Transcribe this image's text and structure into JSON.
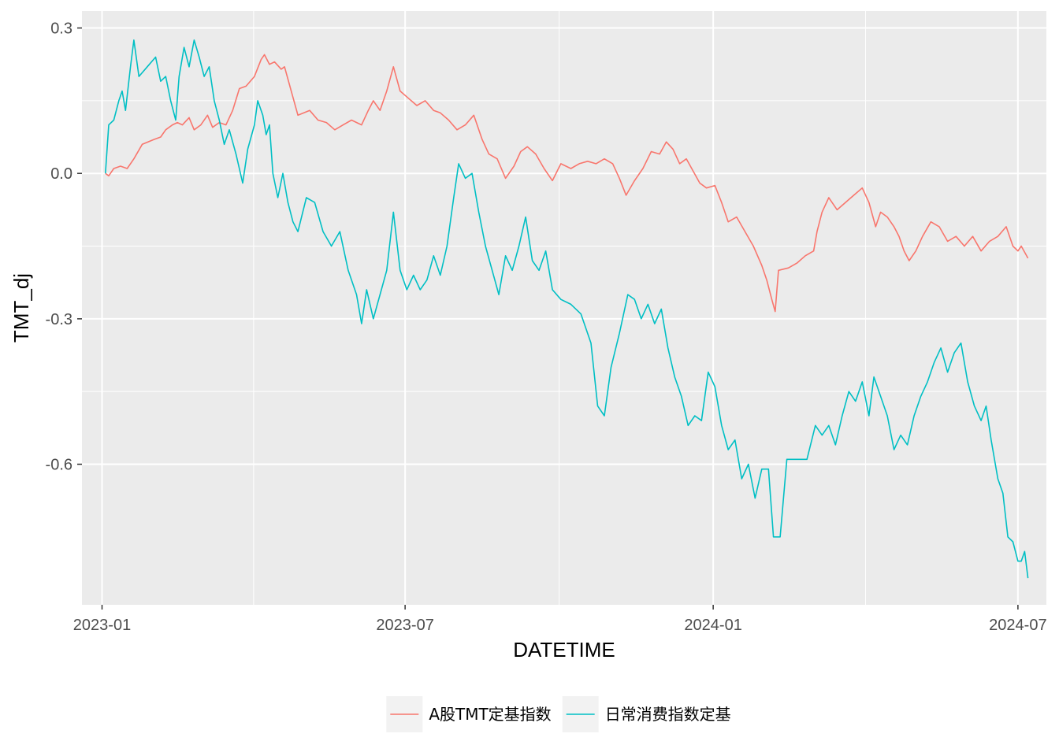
{
  "chart_data": {
    "type": "line",
    "xlabel": "DATETIME",
    "ylabel": "TMT_dj",
    "x_ticks": [
      "2023-01",
      "2023-07",
      "2024-01",
      "2024-07"
    ],
    "y_ticks": [
      "-0.6",
      "-0.3",
      "0.0",
      "0.3"
    ],
    "ylim": [
      -0.89,
      0.335
    ],
    "xlim": [
      "2022-12-20",
      "2024-07-18"
    ],
    "grid": true,
    "background": "#ebebeb",
    "legend_position": "bottom",
    "series": [
      {
        "name": "A股TMT定基指数",
        "color": "#f8766d",
        "points": [
          [
            "2023-01-03",
            0.0
          ],
          [
            "2023-01-05",
            -0.005
          ],
          [
            "2023-01-08",
            0.01
          ],
          [
            "2023-01-12",
            0.015
          ],
          [
            "2023-01-16",
            0.01
          ],
          [
            "2023-01-20",
            0.03
          ],
          [
            "2023-01-25",
            0.06
          ],
          [
            "2023-02-01",
            0.07
          ],
          [
            "2023-02-05",
            0.075
          ],
          [
            "2023-02-08",
            0.09
          ],
          [
            "2023-02-12",
            0.1
          ],
          [
            "2023-02-15",
            0.105
          ],
          [
            "2023-02-18",
            0.1
          ],
          [
            "2023-02-22",
            0.115
          ],
          [
            "2023-02-25",
            0.09
          ],
          [
            "2023-03-01",
            0.1
          ],
          [
            "2023-03-05",
            0.12
          ],
          [
            "2023-03-08",
            0.095
          ],
          [
            "2023-03-12",
            0.105
          ],
          [
            "2023-03-16",
            0.1
          ],
          [
            "2023-03-20",
            0.13
          ],
          [
            "2023-03-24",
            0.175
          ],
          [
            "2023-03-28",
            0.18
          ],
          [
            "2023-04-02",
            0.2
          ],
          [
            "2023-04-06",
            0.235
          ],
          [
            "2023-04-08",
            0.245
          ],
          [
            "2023-04-11",
            0.225
          ],
          [
            "2023-04-14",
            0.23
          ],
          [
            "2023-04-18",
            0.215
          ],
          [
            "2023-04-20",
            0.22
          ],
          [
            "2023-04-24",
            0.17
          ],
          [
            "2023-04-28",
            0.12
          ],
          [
            "2023-05-05",
            0.13
          ],
          [
            "2023-05-10",
            0.11
          ],
          [
            "2023-05-15",
            0.105
          ],
          [
            "2023-05-20",
            0.09
          ],
          [
            "2023-05-25",
            0.1
          ],
          [
            "2023-05-30",
            0.11
          ],
          [
            "2023-06-05",
            0.1
          ],
          [
            "2023-06-09",
            0.13
          ],
          [
            "2023-06-12",
            0.15
          ],
          [
            "2023-06-16",
            0.13
          ],
          [
            "2023-06-20",
            0.17
          ],
          [
            "2023-06-24",
            0.22
          ],
          [
            "2023-06-28",
            0.17
          ],
          [
            "2023-07-03",
            0.155
          ],
          [
            "2023-07-08",
            0.14
          ],
          [
            "2023-07-13",
            0.15
          ],
          [
            "2023-07-18",
            0.13
          ],
          [
            "2023-07-22",
            0.125
          ],
          [
            "2023-07-27",
            0.11
          ],
          [
            "2023-08-01",
            0.09
          ],
          [
            "2023-08-06",
            0.1
          ],
          [
            "2023-08-11",
            0.12
          ],
          [
            "2023-08-16",
            0.07
          ],
          [
            "2023-08-20",
            0.04
          ],
          [
            "2023-08-25",
            0.03
          ],
          [
            "2023-08-30",
            -0.01
          ],
          [
            "2023-09-04",
            0.015
          ],
          [
            "2023-09-08",
            0.045
          ],
          [
            "2023-09-12",
            0.055
          ],
          [
            "2023-09-17",
            0.04
          ],
          [
            "2023-09-22",
            0.01
          ],
          [
            "2023-09-27",
            -0.015
          ],
          [
            "2023-10-02",
            0.02
          ],
          [
            "2023-10-08",
            0.01
          ],
          [
            "2023-10-13",
            0.02
          ],
          [
            "2023-10-18",
            0.025
          ],
          [
            "2023-10-23",
            0.02
          ],
          [
            "2023-10-28",
            0.03
          ],
          [
            "2023-11-02",
            0.02
          ],
          [
            "2023-11-06",
            -0.01
          ],
          [
            "2023-11-10",
            -0.045
          ],
          [
            "2023-11-15",
            -0.015
          ],
          [
            "2023-11-20",
            0.01
          ],
          [
            "2023-11-25",
            0.045
          ],
          [
            "2023-11-30",
            0.04
          ],
          [
            "2023-12-04",
            0.065
          ],
          [
            "2023-12-08",
            0.05
          ],
          [
            "2023-12-12",
            0.02
          ],
          [
            "2023-12-16",
            0.03
          ],
          [
            "2023-12-20",
            0.005
          ],
          [
            "2023-12-24",
            -0.02
          ],
          [
            "2023-12-28",
            -0.03
          ],
          [
            "2024-01-02",
            -0.025
          ],
          [
            "2024-01-06",
            -0.06
          ],
          [
            "2024-01-10",
            -0.1
          ],
          [
            "2024-01-15",
            -0.09
          ],
          [
            "2024-01-20",
            -0.12
          ],
          [
            "2024-01-25",
            -0.15
          ],
          [
            "2024-01-30",
            -0.19
          ],
          [
            "2024-02-02",
            -0.22
          ],
          [
            "2024-02-05",
            -0.26
          ],
          [
            "2024-02-07",
            -0.285
          ],
          [
            "2024-02-09",
            -0.2
          ],
          [
            "2024-02-15",
            -0.195
          ],
          [
            "2024-02-20",
            -0.185
          ],
          [
            "2024-02-25",
            -0.17
          ],
          [
            "2024-03-01",
            -0.16
          ],
          [
            "2024-03-03",
            -0.12
          ],
          [
            "2024-03-06",
            -0.08
          ],
          [
            "2024-03-10",
            -0.05
          ],
          [
            "2024-03-15",
            -0.075
          ],
          [
            "2024-03-20",
            -0.06
          ],
          [
            "2024-03-25",
            -0.045
          ],
          [
            "2024-03-30",
            -0.03
          ],
          [
            "2024-04-03",
            -0.06
          ],
          [
            "2024-04-07",
            -0.11
          ],
          [
            "2024-04-10",
            -0.08
          ],
          [
            "2024-04-14",
            -0.09
          ],
          [
            "2024-04-18",
            -0.11
          ],
          [
            "2024-04-21",
            -0.13
          ],
          [
            "2024-04-24",
            -0.16
          ],
          [
            "2024-04-27",
            -0.18
          ],
          [
            "2024-05-01",
            -0.16
          ],
          [
            "2024-05-05",
            -0.13
          ],
          [
            "2024-05-10",
            -0.1
          ],
          [
            "2024-05-15",
            -0.11
          ],
          [
            "2024-05-20",
            -0.14
          ],
          [
            "2024-05-25",
            -0.13
          ],
          [
            "2024-05-30",
            -0.15
          ],
          [
            "2024-06-04",
            -0.13
          ],
          [
            "2024-06-09",
            -0.16
          ],
          [
            "2024-06-14",
            -0.14
          ],
          [
            "2024-06-19",
            -0.13
          ],
          [
            "2024-06-24",
            -0.11
          ],
          [
            "2024-06-28",
            -0.15
          ],
          [
            "2024-07-01",
            -0.16
          ],
          [
            "2024-07-03",
            -0.15
          ],
          [
            "2024-07-07",
            -0.175
          ]
        ]
      },
      {
        "name": "日常消费指数定基",
        "color": "#00bfc4",
        "points": [
          [
            "2023-01-03",
            0.0
          ],
          [
            "2023-01-05",
            0.1
          ],
          [
            "2023-01-08",
            0.11
          ],
          [
            "2023-01-11",
            0.15
          ],
          [
            "2023-01-13",
            0.17
          ],
          [
            "2023-01-15",
            0.13
          ],
          [
            "2023-01-18",
            0.22
          ],
          [
            "2023-01-20",
            0.275
          ],
          [
            "2023-01-23",
            0.2
          ],
          [
            "2023-01-28",
            0.22
          ],
          [
            "2023-02-02",
            0.24
          ],
          [
            "2023-02-05",
            0.19
          ],
          [
            "2023-02-08",
            0.2
          ],
          [
            "2023-02-11",
            0.15
          ],
          [
            "2023-02-14",
            0.11
          ],
          [
            "2023-02-16",
            0.2
          ],
          [
            "2023-02-19",
            0.26
          ],
          [
            "2023-02-22",
            0.22
          ],
          [
            "2023-02-25",
            0.275
          ],
          [
            "2023-02-28",
            0.24
          ],
          [
            "2023-03-03",
            0.2
          ],
          [
            "2023-03-06",
            0.22
          ],
          [
            "2023-03-09",
            0.15
          ],
          [
            "2023-03-12",
            0.11
          ],
          [
            "2023-03-15",
            0.06
          ],
          [
            "2023-03-18",
            0.09
          ],
          [
            "2023-03-22",
            0.04
          ],
          [
            "2023-03-26",
            -0.02
          ],
          [
            "2023-03-29",
            0.05
          ],
          [
            "2023-04-02",
            0.1
          ],
          [
            "2023-04-04",
            0.15
          ],
          [
            "2023-04-07",
            0.12
          ],
          [
            "2023-04-09",
            0.08
          ],
          [
            "2023-04-11",
            0.1
          ],
          [
            "2023-04-13",
            0.0
          ],
          [
            "2023-04-16",
            -0.05
          ],
          [
            "2023-04-19",
            0.0
          ],
          [
            "2023-04-22",
            -0.06
          ],
          [
            "2023-04-25",
            -0.1
          ],
          [
            "2023-04-28",
            -0.12
          ],
          [
            "2023-05-03",
            -0.05
          ],
          [
            "2023-05-08",
            -0.06
          ],
          [
            "2023-05-13",
            -0.12
          ],
          [
            "2023-05-18",
            -0.15
          ],
          [
            "2023-05-23",
            -0.12
          ],
          [
            "2023-05-28",
            -0.2
          ],
          [
            "2023-06-02",
            -0.25
          ],
          [
            "2023-06-05",
            -0.31
          ],
          [
            "2023-06-08",
            -0.24
          ],
          [
            "2023-06-12",
            -0.3
          ],
          [
            "2023-06-16",
            -0.25
          ],
          [
            "2023-06-20",
            -0.2
          ],
          [
            "2023-06-24",
            -0.08
          ],
          [
            "2023-06-28",
            -0.2
          ],
          [
            "2023-07-02",
            -0.24
          ],
          [
            "2023-07-06",
            -0.21
          ],
          [
            "2023-07-10",
            -0.24
          ],
          [
            "2023-07-14",
            -0.22
          ],
          [
            "2023-07-18",
            -0.17
          ],
          [
            "2023-07-22",
            -0.21
          ],
          [
            "2023-07-26",
            -0.15
          ],
          [
            "2023-07-30",
            -0.05
          ],
          [
            "2023-08-02",
            0.02
          ],
          [
            "2023-08-06",
            -0.01
          ],
          [
            "2023-08-10",
            0.0
          ],
          [
            "2023-08-14",
            -0.08
          ],
          [
            "2023-08-18",
            -0.15
          ],
          [
            "2023-08-22",
            -0.2
          ],
          [
            "2023-08-26",
            -0.25
          ],
          [
            "2023-08-30",
            -0.17
          ],
          [
            "2023-09-03",
            -0.2
          ],
          [
            "2023-09-07",
            -0.15
          ],
          [
            "2023-09-11",
            -0.09
          ],
          [
            "2023-09-15",
            -0.18
          ],
          [
            "2023-09-19",
            -0.2
          ],
          [
            "2023-09-23",
            -0.16
          ],
          [
            "2023-09-27",
            -0.24
          ],
          [
            "2023-10-02",
            -0.26
          ],
          [
            "2023-10-08",
            -0.27
          ],
          [
            "2023-10-14",
            -0.29
          ],
          [
            "2023-10-20",
            -0.35
          ],
          [
            "2023-10-24",
            -0.48
          ],
          [
            "2023-10-28",
            -0.5
          ],
          [
            "2023-11-01",
            -0.4
          ],
          [
            "2023-11-06",
            -0.33
          ],
          [
            "2023-11-11",
            -0.25
          ],
          [
            "2023-11-15",
            -0.26
          ],
          [
            "2023-11-19",
            -0.3
          ],
          [
            "2023-11-23",
            -0.27
          ],
          [
            "2023-11-27",
            -0.31
          ],
          [
            "2023-12-01",
            -0.28
          ],
          [
            "2023-12-05",
            -0.36
          ],
          [
            "2023-12-09",
            -0.42
          ],
          [
            "2023-12-13",
            -0.46
          ],
          [
            "2023-12-17",
            -0.52
          ],
          [
            "2023-12-21",
            -0.5
          ],
          [
            "2023-12-25",
            -0.51
          ],
          [
            "2023-12-29",
            -0.41
          ],
          [
            "2024-01-02",
            -0.44
          ],
          [
            "2024-01-06",
            -0.52
          ],
          [
            "2024-01-10",
            -0.57
          ],
          [
            "2024-01-14",
            -0.55
          ],
          [
            "2024-01-18",
            -0.63
          ],
          [
            "2024-01-22",
            -0.6
          ],
          [
            "2024-01-26",
            -0.67
          ],
          [
            "2024-01-30",
            -0.61
          ],
          [
            "2024-02-03",
            -0.61
          ],
          [
            "2024-02-06",
            -0.75
          ],
          [
            "2024-02-10",
            -0.75
          ],
          [
            "2024-02-14",
            -0.59
          ],
          [
            "2024-02-20",
            -0.59
          ],
          [
            "2024-02-26",
            -0.59
          ],
          [
            "2024-03-02",
            -0.52
          ],
          [
            "2024-03-06",
            -0.54
          ],
          [
            "2024-03-10",
            -0.52
          ],
          [
            "2024-03-14",
            -0.56
          ],
          [
            "2024-03-18",
            -0.5
          ],
          [
            "2024-03-22",
            -0.45
          ],
          [
            "2024-03-26",
            -0.47
          ],
          [
            "2024-03-30",
            -0.43
          ],
          [
            "2024-04-03",
            -0.5
          ],
          [
            "2024-04-06",
            -0.42
          ],
          [
            "2024-04-10",
            -0.46
          ],
          [
            "2024-04-14",
            -0.5
          ],
          [
            "2024-04-18",
            -0.57
          ],
          [
            "2024-04-22",
            -0.54
          ],
          [
            "2024-04-26",
            -0.56
          ],
          [
            "2024-04-30",
            -0.5
          ],
          [
            "2024-05-04",
            -0.46
          ],
          [
            "2024-05-08",
            -0.43
          ],
          [
            "2024-05-12",
            -0.39
          ],
          [
            "2024-05-16",
            -0.36
          ],
          [
            "2024-05-20",
            -0.41
          ],
          [
            "2024-05-24",
            -0.37
          ],
          [
            "2024-05-28",
            -0.35
          ],
          [
            "2024-06-01",
            -0.43
          ],
          [
            "2024-06-05",
            -0.48
          ],
          [
            "2024-06-09",
            -0.51
          ],
          [
            "2024-06-12",
            -0.48
          ],
          [
            "2024-06-15",
            -0.55
          ],
          [
            "2024-06-19",
            -0.63
          ],
          [
            "2024-06-22",
            -0.66
          ],
          [
            "2024-06-25",
            -0.75
          ],
          [
            "2024-06-28",
            -0.76
          ],
          [
            "2024-07-01",
            -0.8
          ],
          [
            "2024-07-03",
            -0.8
          ],
          [
            "2024-07-05",
            -0.78
          ],
          [
            "2024-07-07",
            -0.835
          ]
        ]
      }
    ]
  }
}
